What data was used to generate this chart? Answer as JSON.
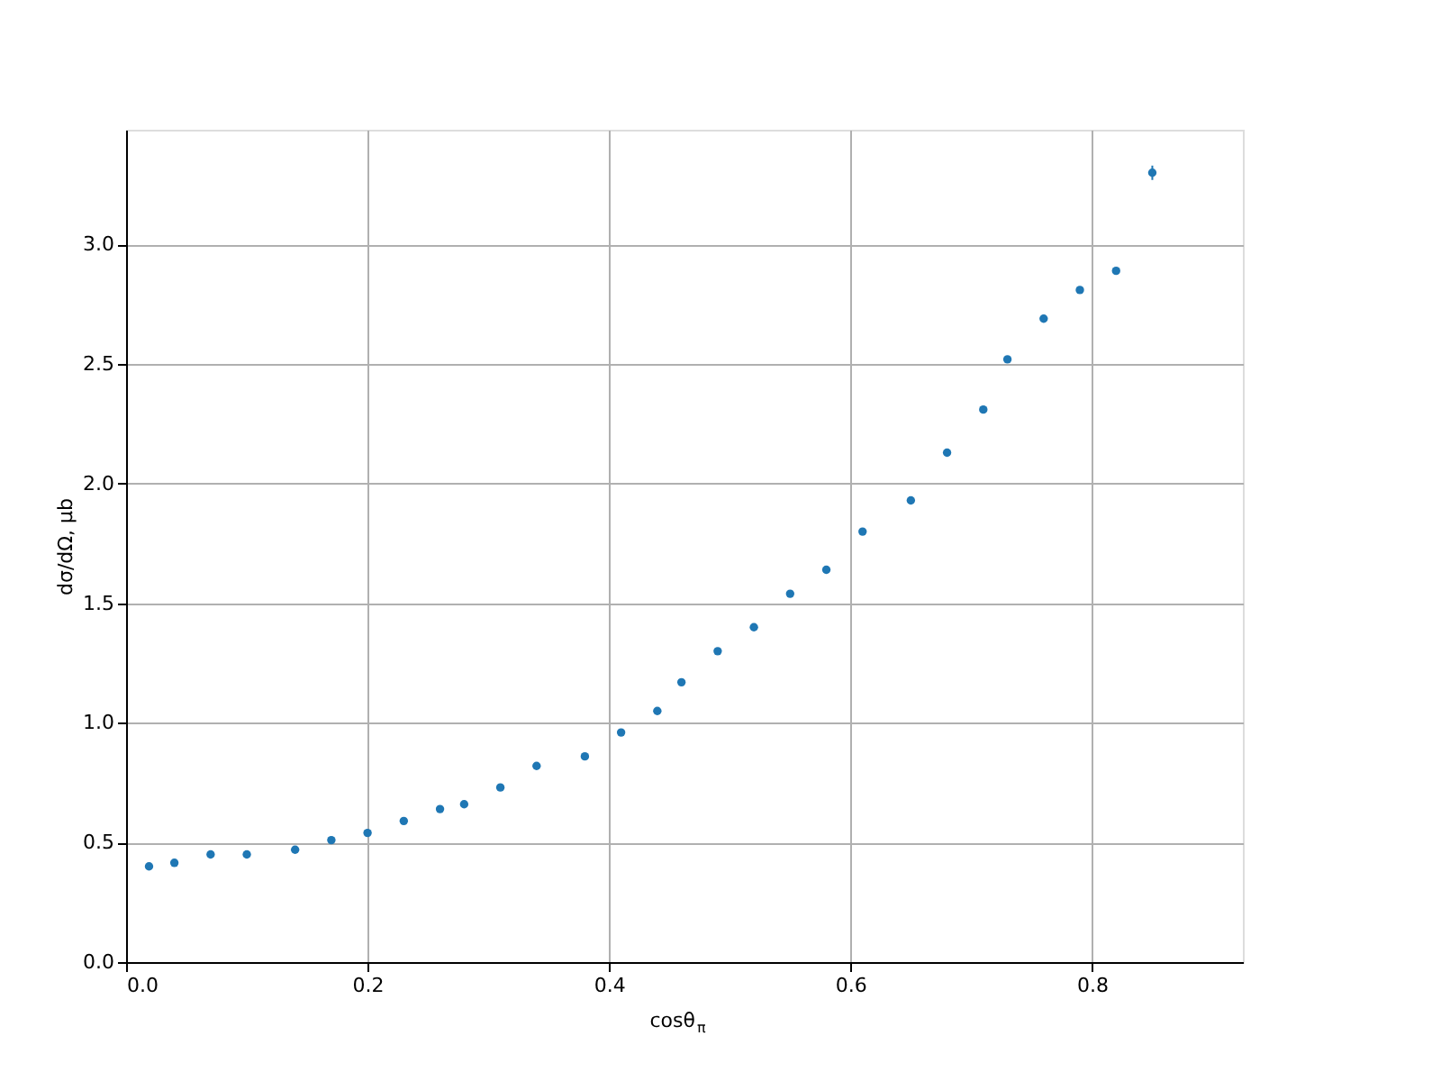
{
  "chart_data": {
    "type": "scatter",
    "xlabel": "cosθ$_{π}$",
    "ylabel": "dσ/dΩ, μb",
    "x": [
      0.019,
      0.04,
      0.07,
      0.1,
      0.14,
      0.17,
      0.2,
      0.23,
      0.26,
      0.28,
      0.31,
      0.34,
      0.38,
      0.41,
      0.44,
      0.46,
      0.49,
      0.52,
      0.55,
      0.58,
      0.61,
      0.65,
      0.68,
      0.71,
      0.73,
      0.76,
      0.79,
      0.82,
      0.85
    ],
    "series": [
      {
        "color": "#1f77b4",
        "values": [
          0.4,
          0.415,
          0.45,
          0.45,
          0.47,
          0.51,
          0.54,
          0.59,
          0.64,
          0.66,
          0.73,
          0.82,
          0.86,
          0.96,
          1.05,
          1.17,
          1.3,
          1.4,
          1.54,
          1.64,
          1.8,
          1.93,
          2.13,
          2.31,
          2.52,
          2.69,
          2.81,
          2.89,
          3.3
        ],
        "errors": [
          null,
          null,
          null,
          null,
          null,
          null,
          null,
          null,
          null,
          null,
          null,
          null,
          null,
          null,
          null,
          null,
          null,
          null,
          null,
          null,
          null,
          null,
          null,
          null,
          null,
          null,
          null,
          null,
          0.03
        ]
      }
    ],
    "xlim": [
      0,
      0.925
    ],
    "ylim": [
      0,
      3.48
    ],
    "xticks": [
      {
        "value": 0,
        "label": "0.0"
      },
      0.2,
      0.4,
      0.6,
      0.8
    ],
    "yticks": [
      {
        "value": 0,
        "label": "0.0"
      },
      0.5,
      {
        "value": 1,
        "label": "1.0"
      },
      1.5,
      {
        "value": 2,
        "label": "2.0"
      },
      2.5,
      {
        "value": 3,
        "label": "3.0"
      }
    ],
    "grid": true,
    "marker": "circle"
  }
}
